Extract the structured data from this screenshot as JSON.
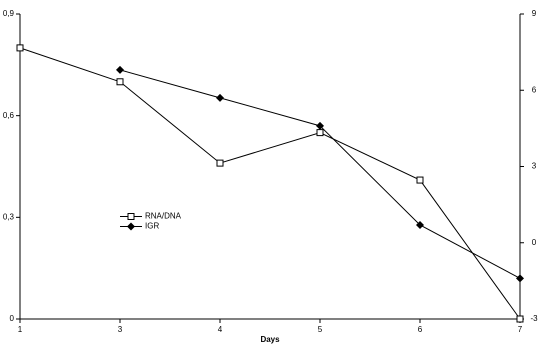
{
  "chart_data": {
    "type": "line",
    "x_label": "Days",
    "categories": [
      "1",
      "3",
      "4",
      "5",
      "6",
      "7"
    ],
    "series": [
      {
        "name": "RNA/DNA",
        "color": "#000000",
        "marker": "square",
        "values": [
          0.8,
          0.7,
          0.46,
          0.55,
          0.41,
          0.0
        ]
      },
      {
        "name": "IGR",
        "color": "#000000",
        "marker": "diamond",
        "axis": "y2",
        "values": [
          null,
          6.8,
          5.7,
          4.6,
          0.7,
          -1.4
        ]
      }
    ],
    "ylim": [
      0,
      0.9
    ],
    "yticks": [
      0,
      {
        "value": 0.3,
        "label": "0,3"
      },
      {
        "value": 0.6,
        "label": "0,6"
      },
      {
        "value": 0.9,
        "label": "0,9"
      }
    ],
    "y2lim": [
      -3,
      9
    ],
    "y2ticks": [
      -3,
      0,
      3,
      6,
      9
    ],
    "legend": "center-left",
    "grid": false
  }
}
